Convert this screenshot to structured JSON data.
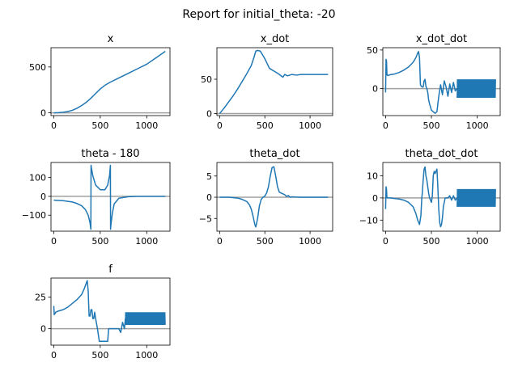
{
  "figure": {
    "title": "Report for initial_theta: -20"
  },
  "colors": {
    "line": "#1f77b4",
    "zero_line": "#a0a0a0",
    "axes": "#000000"
  },
  "chart_data": [
    {
      "type": "line",
      "title": "x",
      "xlim": [
        -30,
        1250
      ],
      "ylim": [
        -30,
        710
      ],
      "xticks": [
        0,
        500,
        1000
      ],
      "yticks": [
        0,
        500
      ],
      "zero_line": 0,
      "series": [
        {
          "x": [
            0,
            50,
            100,
            150,
            200,
            250,
            300,
            350,
            400,
            450,
            500,
            550,
            600,
            700,
            800,
            900,
            1000,
            1100,
            1200
          ],
          "y": [
            0,
            2,
            6,
            14,
            28,
            50,
            80,
            115,
            160,
            210,
            260,
            300,
            330,
            380,
            430,
            480,
            530,
            600,
            670
          ]
        }
      ]
    },
    {
      "type": "line",
      "title": "x_dot",
      "xlim": [
        -30,
        1250
      ],
      "ylim": [
        -3,
        96
      ],
      "xticks": [
        0,
        500,
        1000
      ],
      "yticks": [
        0,
        50
      ],
      "zero_line": 0,
      "series": [
        {
          "x": [
            0,
            50,
            100,
            150,
            200,
            250,
            300,
            350,
            380,
            400,
            420,
            450,
            500,
            550,
            600,
            650,
            700,
            720,
            750,
            800,
            850,
            900,
            1000,
            1100,
            1200
          ],
          "y": [
            0,
            8,
            17,
            26,
            36,
            47,
            58,
            70,
            82,
            91,
            92,
            91,
            80,
            66,
            62,
            58,
            53,
            57,
            55,
            57,
            56,
            57,
            57,
            57,
            57
          ]
        }
      ]
    },
    {
      "type": "line",
      "title": "x_dot_dot",
      "xlim": [
        -30,
        1250
      ],
      "ylim": [
        -35,
        53
      ],
      "xticks": [
        0,
        500,
        1000
      ],
      "yticks": [
        0,
        50
      ],
      "zero_line": 0,
      "series": [
        {
          "x": [
            0,
            5,
            10,
            15,
            20,
            25,
            50,
            100,
            150,
            200,
            250,
            300,
            330,
            350,
            360,
            370,
            380,
            390,
            400,
            410,
            420,
            430,
            440,
            450,
            460,
            470,
            480,
            500,
            540,
            560,
            580,
            600,
            620,
            640,
            660,
            680,
            700,
            720,
            740,
            760,
            780
          ],
          "y": [
            -5,
            38,
            36,
            18,
            17,
            17,
            18,
            19,
            21,
            24,
            28,
            34,
            40,
            46,
            48,
            40,
            5,
            3,
            2,
            2,
            10,
            12,
            3,
            0,
            -5,
            -15,
            -20,
            -28,
            -32,
            -30,
            -10,
            5,
            -8,
            10,
            2,
            -10,
            6,
            -5,
            8,
            -3,
            0
          ]
        }
      ],
      "oscillation": {
        "x_start": 780,
        "x_end": 1200,
        "amplitude": 12,
        "center": 0
      }
    },
    {
      "type": "line",
      "title": "theta - 180",
      "xlim": [
        -30,
        1250
      ],
      "ylim": [
        -185,
        180
      ],
      "xticks": [
        0,
        500,
        1000
      ],
      "yticks": [
        -100,
        0,
        100
      ],
      "zero_line": 0,
      "series": [
        {
          "x": [
            0,
            100,
            200,
            250,
            300,
            340,
            370,
            390,
            399,
            400,
            401,
            405,
            420,
            450,
            500,
            550,
            580,
            600,
            609,
            610,
            611,
            615,
            630,
            650,
            700,
            800,
            900,
            1000,
            1100,
            1200
          ],
          "y": [
            -20,
            -23,
            -30,
            -38,
            -50,
            -70,
            -100,
            -140,
            -175,
            0,
            165,
            150,
            110,
            60,
            35,
            35,
            60,
            110,
            165,
            0,
            -175,
            -150,
            -90,
            -40,
            -10,
            -2,
            0,
            0,
            0,
            0
          ]
        }
      ]
    },
    {
      "type": "line",
      "title": "theta_dot",
      "xlim": [
        -30,
        1250
      ],
      "ylim": [
        -8,
        8.2
      ],
      "xticks": [
        0,
        500,
        1000
      ],
      "yticks": [
        -5,
        0,
        5
      ],
      "zero_line": 0,
      "series": [
        {
          "x": [
            0,
            100,
            200,
            250,
            300,
            330,
            350,
            370,
            390,
            400,
            420,
            440,
            460,
            480,
            500,
            520,
            540,
            560,
            580,
            600,
            620,
            640,
            660,
            680,
            700,
            720,
            740,
            760,
            780,
            800,
            900,
            1000,
            1100,
            1200
          ],
          "y": [
            0,
            0,
            -0.2,
            -0.5,
            -1,
            -1.8,
            -2.8,
            -4.5,
            -6.5,
            -7,
            -5,
            -2,
            -0.5,
            0,
            0.3,
            1,
            2.5,
            5,
            7,
            7.2,
            5,
            2.5,
            1.2,
            1,
            0.8,
            0.6,
            0.2,
            0.4,
            0,
            0.1,
            0,
            0,
            0,
            0
          ]
        }
      ]
    },
    {
      "type": "line",
      "title": "theta_dot_dot",
      "xlim": [
        -30,
        1250
      ],
      "ylim": [
        -15,
        16
      ],
      "xticks": [
        0,
        500,
        1000
      ],
      "yticks": [
        -10,
        0,
        10
      ],
      "zero_line": 0,
      "series": [
        {
          "x": [
            0,
            5,
            10,
            15,
            20,
            30,
            50,
            100,
            150,
            200,
            250,
            300,
            330,
            350,
            370,
            385,
            395,
            400,
            410,
            420,
            430,
            440,
            450,
            470,
            480,
            490,
            500,
            510,
            520,
            530,
            540,
            550,
            560,
            570,
            580,
            590,
            600,
            610,
            620,
            630,
            650,
            680,
            700,
            720,
            740,
            760,
            780
          ],
          "y": [
            -5,
            5,
            4,
            0,
            0,
            0,
            0,
            -0.3,
            -0.5,
            -1,
            -2,
            -4,
            -7,
            -10,
            -12,
            -8,
            0,
            2,
            8,
            13,
            14,
            10,
            8,
            2,
            0,
            -1,
            -2,
            1,
            10,
            12,
            11,
            12,
            13,
            5,
            -5,
            -11,
            -13,
            -12,
            -9,
            -4,
            0,
            0,
            1,
            -1,
            1,
            -1,
            0
          ]
        }
      ],
      "oscillation": {
        "x_start": 780,
        "x_end": 1200,
        "amplitude": 4,
        "center": 0
      }
    },
    {
      "type": "line",
      "title": "f",
      "xlim": [
        -30,
        1250
      ],
      "ylim": [
        -13,
        40
      ],
      "xticks": [
        0,
        500,
        1000
      ],
      "yticks": [
        0,
        25
      ],
      "zero_line": 0,
      "series": [
        {
          "x": [
            0,
            5,
            10,
            15,
            20,
            50,
            100,
            150,
            200,
            250,
            300,
            330,
            350,
            360,
            370,
            380,
            390,
            400,
            410,
            420,
            430,
            440,
            450,
            470,
            480,
            490,
            500,
            530,
            560,
            580,
            590,
            600,
            620,
            640,
            660,
            680,
            700,
            720,
            740,
            760,
            770
          ],
          "y": [
            18,
            11,
            12,
            12,
            13,
            14,
            15,
            17,
            20,
            23,
            27,
            32,
            36,
            38,
            30,
            10,
            10,
            15,
            15,
            8,
            8,
            13,
            8,
            0,
            -5,
            -10,
            -10,
            -10,
            -10,
            -10,
            0,
            0,
            0,
            0,
            0,
            0,
            0,
            -3,
            5,
            0,
            8
          ]
        }
      ],
      "oscillation": {
        "x_start": 770,
        "x_end": 1200,
        "amplitude": 5,
        "center": 8
      }
    }
  ]
}
